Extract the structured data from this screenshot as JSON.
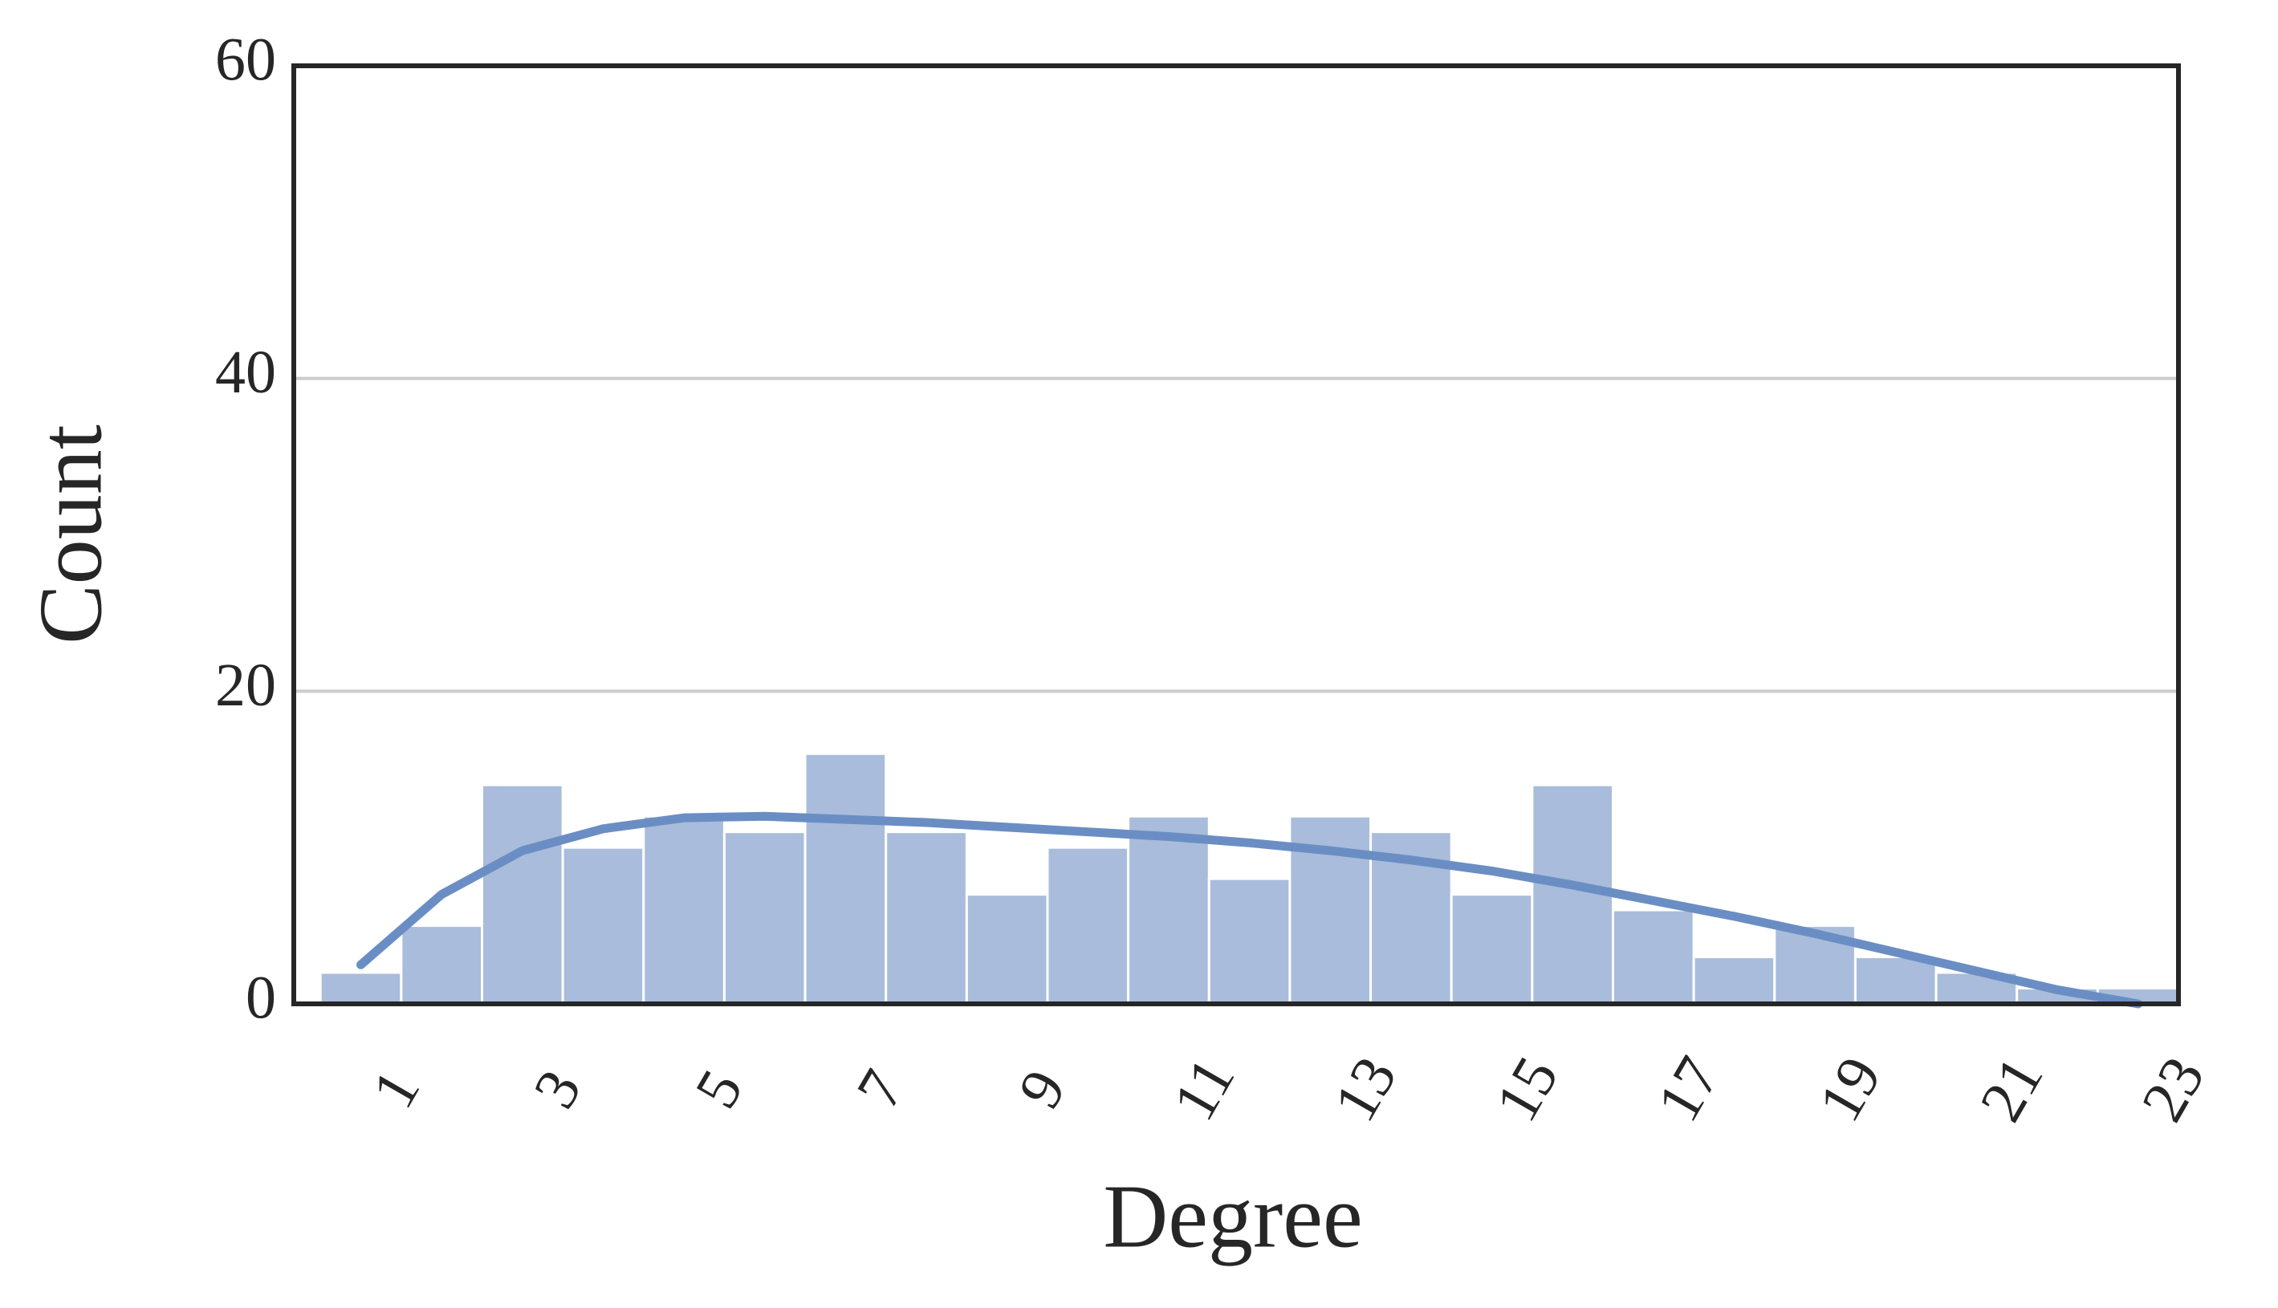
{
  "chart_data": {
    "type": "histogram",
    "x_label": "Degree",
    "y_label": "Count",
    "bins": [
      0,
      1,
      2,
      3,
      4,
      5,
      6,
      7,
      8,
      9,
      10,
      11,
      12,
      13,
      14,
      15,
      16,
      17,
      18,
      19,
      20,
      21,
      22,
      23
    ],
    "values": [
      2,
      5,
      14,
      10,
      12,
      11,
      16,
      11,
      7,
      10,
      12,
      8,
      12,
      11,
      7,
      14,
      6,
      3,
      5,
      3,
      2,
      1,
      1
    ],
    "color": "#a9bcdb",
    "kde": {
      "x": [
        0.5,
        1.5,
        2.5,
        3.5,
        4.5,
        5.5,
        6.5,
        7.5,
        8.5,
        9.5,
        10.5,
        11.5,
        12.5,
        13.5,
        14.5,
        15.5,
        16.5,
        17.5,
        18.5,
        19.5,
        20.5,
        21.5,
        22.5
      ],
      "values": [
        2.5,
        7,
        9.8,
        11.2,
        11.9,
        12,
        11.8,
        11.6,
        11.3,
        11,
        10.7,
        10.3,
        9.8,
        9.2,
        8.5,
        7.6,
        6.6,
        5.6,
        4.5,
        3.3,
        2.1,
        0.9,
        0
      ],
      "color": "#6a8ec4"
    },
    "xlim": [
      -0.33,
      23
    ],
    "ylim": [
      0,
      60
    ],
    "xticks": [
      1,
      3,
      5,
      7,
      9,
      11,
      13,
      15,
      17,
      19,
      21,
      23
    ],
    "yticks": [
      0,
      20,
      40,
      60
    ],
    "grid": true
  }
}
